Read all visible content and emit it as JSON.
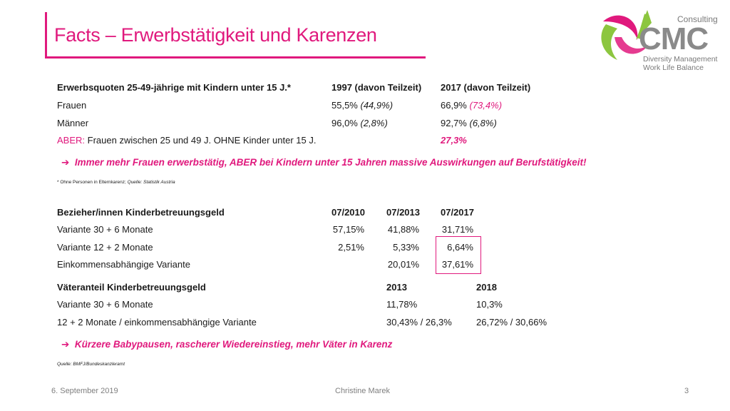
{
  "title": "Facts – Erwerbstätigkeit und Karenzen",
  "logo": {
    "consulting": "Consulting",
    "name": "CMC",
    "tagline1": "Diversity Management",
    "tagline2": "Work Life Balance"
  },
  "table1": {
    "header": [
      "Erwerbsquoten 25-49-jährige mit Kindern unter 15 J.*",
      "1997 (davon Teilzeit)",
      "2017 (davon Teilzeit)"
    ],
    "rows": [
      {
        "label": "Frauen",
        "v1997": "55,5%",
        "p1997": "(44,9%)",
        "v2017": "66,9%",
        "p2017": "(73,4%)"
      },
      {
        "label": "Männer",
        "v1997": "96,0%",
        "p1997": "(2,8%)",
        "v2017": "92,7%",
        "p2017": "(6,8%)"
      }
    ],
    "aber": {
      "prefix": "ABER:",
      "label": "Frauen zwischen 25 und 49 J. OHNE Kinder unter 15 J.",
      "value": "27,3%"
    }
  },
  "callout1": "Immer mehr Frauen erwerbstätig, ABER bei Kindern unter 15 Jahren massive Auswirkungen auf Berufstätigkeit!",
  "note1": {
    "text": "* Ohne Personen in Elternkarenz; ",
    "source": "Quelle: Statistik Austria"
  },
  "table2": {
    "header": [
      "Bezieher/innen Kinderbetreuungsgeld",
      "07/2010",
      "07/2013",
      "07/2017"
    ],
    "rows": [
      [
        "Variante 30 + 6 Monate",
        "57,15%",
        "41,88%",
        "31,71%"
      ],
      [
        "Variante 12 + 2 Monate",
        "2,51%",
        "5,33%",
        "6,64%"
      ],
      [
        "Einkommensabhängige Variante",
        "",
        "20,01%",
        "37,61%"
      ]
    ]
  },
  "table3": {
    "header": [
      "Väteranteil Kinderbetreuungsgeld",
      "2013",
      "2018"
    ],
    "rows": [
      [
        "Variante 30 + 6 Monate",
        "11,78%",
        "10,3%"
      ],
      [
        "12 + 2 Monate / einkommensabhängige Variante",
        "30,43% / 26,3%",
        "26,72% / 30,66%"
      ]
    ]
  },
  "callout2": "Kürzere Babypausen, rascherer Wiedereinstieg, mehr Väter in Karenz",
  "note2": "Quelle: BMFJ/Bundeskanzleramt",
  "footer": {
    "date": "6. September 2019",
    "author": "Christine Marek",
    "page": "3"
  },
  "colors": {
    "accent": "#e0197d",
    "logo_green": "#8cc63f",
    "logo_gray": "#8a8a8a"
  }
}
